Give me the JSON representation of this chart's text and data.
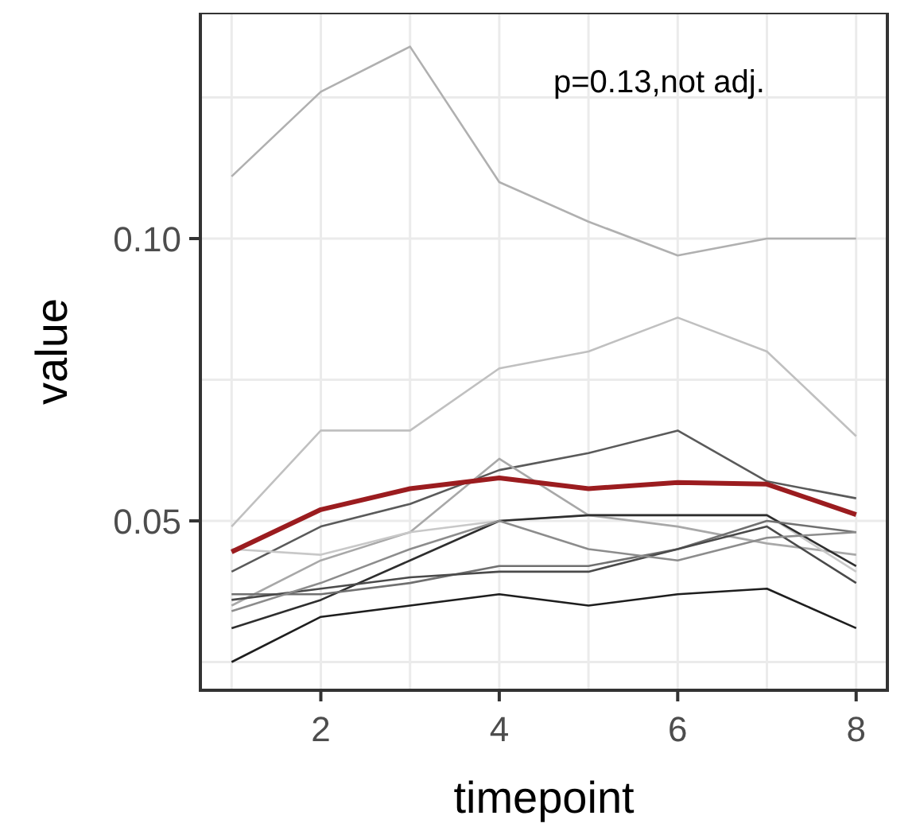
{
  "chart_data": {
    "type": "line",
    "xlabel": "timepoint",
    "ylabel": "value",
    "annotations": [
      "p=0.13,not adj."
    ],
    "x": [
      1,
      2,
      3,
      4,
      5,
      6,
      7,
      8
    ],
    "xlim": [
      0.65,
      8.35
    ],
    "xticks": [
      {
        "value": 1,
        "label": null
      },
      2,
      {
        "value": 3,
        "label": null
      },
      4,
      {
        "value": 5,
        "label": null
      },
      6,
      {
        "value": 7,
        "label": null
      },
      8
    ],
    "ylim": [
      0.02,
      0.14
    ],
    "yticks": [
      {
        "value": 0.025,
        "label": null
      },
      {
        "value": 0.05,
        "label": "0.05"
      },
      {
        "value": 0.075,
        "label": null
      },
      {
        "value": 0.1,
        "label": "0.10"
      },
      {
        "value": 0.125,
        "label": null
      }
    ],
    "grid": true,
    "marker": "none",
    "line_style": "solid",
    "series": [
      {
        "color": "#b0b0b0",
        "values": [
          0.111,
          0.126,
          0.134,
          0.11,
          0.103,
          0.097,
          0.1,
          0.1
        ]
      },
      {
        "color": "#c0c0c0",
        "values": [
          0.049,
          0.066,
          0.066,
          0.077,
          0.08,
          0.086,
          0.08,
          0.065
        ]
      },
      {
        "color": "#5a5a5a",
        "values": [
          0.041,
          0.049,
          0.053,
          0.059,
          0.062,
          0.066,
          0.057,
          0.054
        ]
      },
      {
        "color": "#a8a8a8",
        "values": [
          0.035,
          0.043,
          0.048,
          0.061,
          0.051,
          0.049,
          0.046,
          0.044
        ]
      },
      {
        "color": "#c8c8c8",
        "values": [
          0.045,
          0.044,
          0.048,
          0.05,
          0.051,
          0.051,
          0.051,
          0.041
        ]
      },
      {
        "color": "#1e1e1e",
        "values": [
          0.025,
          0.033,
          0.035,
          0.037,
          0.035,
          0.037,
          0.038,
          0.031
        ]
      },
      {
        "color": "#2e2e2e",
        "values": [
          0.031,
          0.036,
          0.043,
          0.05,
          0.051,
          0.051,
          0.051,
          0.042
        ]
      },
      {
        "color": "#707070",
        "values": [
          0.037,
          0.037,
          0.039,
          0.042,
          0.042,
          0.045,
          0.05,
          0.048
        ]
      },
      {
        "color": "#4a4a4a",
        "values": [
          0.036,
          0.038,
          0.04,
          0.041,
          0.041,
          0.045,
          0.049,
          0.039
        ]
      },
      {
        "color": "#8c8c8c",
        "values": [
          0.034,
          0.039,
          0.045,
          0.05,
          0.045,
          0.043,
          0.047,
          0.048
        ]
      },
      {
        "color": "#9b1c1f",
        "values": [
          0.0445,
          0.052,
          0.0557,
          0.0576,
          0.0557,
          0.0568,
          0.0565,
          0.0511
        ]
      }
    ]
  }
}
